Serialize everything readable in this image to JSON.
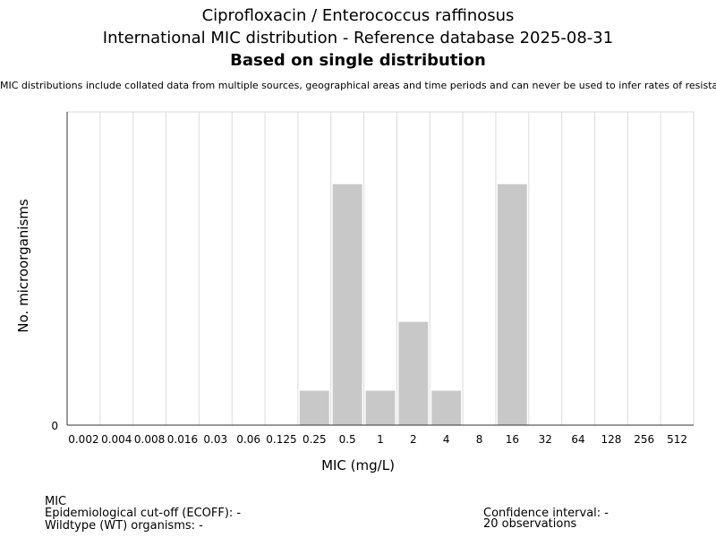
{
  "header": {
    "title_line1": "Ciprofloxacin / Enterococcus raffinosus",
    "title_line2": "International MIC distribution - Reference database 2025-08-31",
    "title_line3": "Based on single distribution",
    "disclaimer": "MIC distributions include collated data from multiple sources, geographical areas and time periods and can never be used to infer rates of resistance"
  },
  "chart_data": {
    "type": "bar",
    "title": "Ciprofloxacin / Enterococcus raffinosus",
    "xlabel": "MIC (mg/L)",
    "ylabel": "No. microorganisms",
    "categories": [
      "0.002",
      "0.004",
      "0.008",
      "0.016",
      "0.03",
      "0.06",
      "0.125",
      "0.25",
      "0.5",
      "1",
      "2",
      "4",
      "8",
      "16",
      "32",
      "64",
      "128",
      "256",
      "512"
    ],
    "values": [
      0,
      0,
      0,
      0,
      0,
      0,
      0,
      1,
      7,
      1,
      3,
      1,
      0,
      7,
      0,
      0,
      0,
      0,
      0
    ],
    "ylim": [
      0,
      9.1
    ],
    "y_tick_labels": [
      "0"
    ],
    "grid": "vertical",
    "bar_color": "#c8c8c8"
  },
  "footer": {
    "left": {
      "line1": "MIC",
      "line2": "Epidemiological cut-off (ECOFF): -",
      "line3": "Wildtype (WT) organisms:  -"
    },
    "right": {
      "line1": "Confidence interval: -",
      "line2": "20 observations"
    }
  }
}
